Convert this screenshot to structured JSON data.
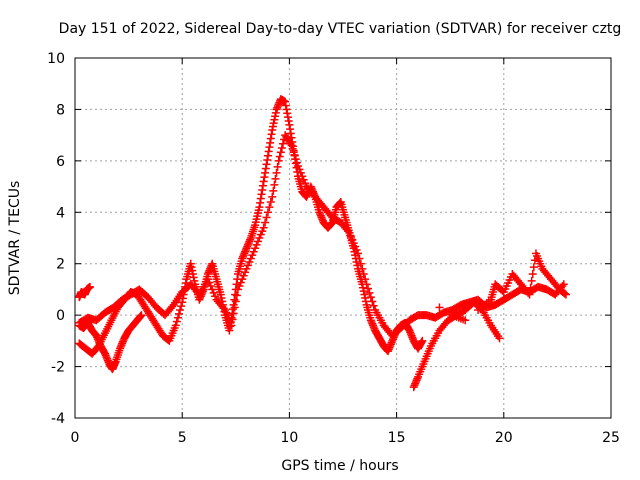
{
  "chart_data": {
    "type": "scatter",
    "title": "Day 151 of 2022, Sidereal Day-to-day VTEC variation (SDTVAR) for receiver cztg",
    "xlabel": "GPS time / hours",
    "ylabel": "SDTVAR / TECUs",
    "xlim": [
      0,
      25
    ],
    "ylim": [
      -4,
      10
    ],
    "xticks": [
      0,
      5,
      10,
      15,
      20,
      25
    ],
    "yticks": [
      -4,
      -2,
      0,
      2,
      4,
      6,
      8,
      10
    ],
    "grid": true,
    "marker": "+",
    "series": [
      {
        "name": "SDTVAR",
        "color": "#ff0000",
        "x": [
          0.2,
          0.3,
          0.45,
          0.55,
          0.7,
          0.2,
          0.4,
          0.6,
          0.8,
          1.0,
          1.2,
          1.4,
          1.6,
          1.75,
          1.9,
          2.1,
          2.3,
          2.5,
          2.7,
          2.9,
          3.1,
          0.2,
          0.5,
          0.8,
          1.1,
          1.4,
          1.7,
          2.0,
          2.3,
          2.6,
          2.9,
          3.2,
          3.5,
          3.8,
          4.1,
          4.4,
          4.7,
          5.0,
          5.2,
          5.4,
          5.6,
          5.8,
          6.0,
          6.2,
          6.4,
          6.6,
          6.8,
          7.0,
          7.2,
          7.4,
          7.6,
          7.8,
          8.0,
          8.2,
          8.4,
          8.6,
          8.8,
          9.0,
          9.2,
          9.4,
          9.6,
          9.8,
          10.0,
          10.2,
          10.4,
          10.6,
          10.8,
          11.0,
          11.2,
          11.4,
          11.6,
          11.8,
          12.0,
          12.2,
          12.4,
          12.6,
          12.8,
          13.0,
          13.2,
          13.4,
          13.6,
          13.8,
          14.0,
          14.2,
          14.4,
          14.6,
          14.8,
          15.0,
          15.2,
          15.4,
          15.6,
          15.8,
          16.0,
          16.2,
          0.2,
          0.6,
          1.0,
          1.4,
          1.8,
          2.2,
          2.6,
          3.0,
          3.4,
          3.8,
          4.2,
          4.6,
          5.0,
          5.4,
          5.8,
          6.2,
          6.6,
          7.0,
          7.3,
          7.6,
          8.0,
          8.4,
          8.8,
          9.2,
          9.5,
          9.8,
          10.1,
          10.4,
          10.8,
          11.2,
          11.6,
          12.0,
          12.4,
          12.8,
          13.2,
          13.6,
          14.0,
          14.4,
          14.8,
          15.2,
          15.6,
          16.0,
          16.4,
          16.8,
          17.2,
          17.6,
          18.0,
          18.4,
          18.8,
          19.2,
          19.6,
          20.0,
          20.4,
          20.8,
          21.2,
          21.6,
          22.0,
          22.4,
          22.8,
          15.8,
          16.0,
          16.3,
          16.6,
          17.0,
          17.4,
          17.8,
          18.2,
          18.6,
          19.0,
          19.4,
          19.8,
          17.0,
          17.6,
          18.2,
          18.8,
          19.4,
          19.6,
          20.0,
          20.4,
          20.8,
          21.2,
          21.5,
          21.8,
          22.2,
          22.6,
          22.9
        ],
        "y": [
          0.7,
          0.9,
          0.8,
          1.0,
          1.1,
          -0.4,
          -0.5,
          -0.3,
          -0.6,
          -0.8,
          -1.2,
          -1.5,
          -1.9,
          -2.1,
          -1.8,
          -1.3,
          -0.9,
          -0.6,
          -0.4,
          -0.2,
          0.0,
          -1.1,
          -1.3,
          -1.5,
          -1.2,
          -0.7,
          -0.2,
          0.3,
          0.6,
          0.9,
          0.8,
          0.4,
          0.0,
          -0.4,
          -0.8,
          -1.0,
          -0.4,
          0.5,
          1.4,
          2.0,
          1.2,
          0.6,
          1.0,
          1.6,
          2.0,
          1.4,
          0.8,
          0.0,
          -0.6,
          0.4,
          1.6,
          2.2,
          2.6,
          3.0,
          3.5,
          4.2,
          5.2,
          6.2,
          7.2,
          8.0,
          8.4,
          8.3,
          7.4,
          6.4,
          5.4,
          4.8,
          4.6,
          5.0,
          4.6,
          4.0,
          3.6,
          3.4,
          3.6,
          4.2,
          4.4,
          3.8,
          3.2,
          2.6,
          1.8,
          1.2,
          0.4,
          -0.2,
          -0.6,
          -0.9,
          -1.2,
          -1.4,
          -1.0,
          -0.6,
          -0.4,
          -0.3,
          -0.6,
          -1.0,
          -1.3,
          -1.0,
          -0.3,
          -0.1,
          -0.2,
          0.1,
          0.3,
          0.6,
          0.8,
          1.0,
          0.7,
          0.3,
          0.0,
          0.4,
          0.9,
          1.2,
          0.8,
          1.4,
          0.6,
          0.2,
          -0.4,
          1.0,
          1.8,
          2.6,
          3.4,
          4.6,
          6.0,
          7.0,
          6.6,
          5.8,
          5.0,
          4.6,
          4.2,
          3.8,
          3.6,
          3.2,
          2.4,
          1.2,
          0.2,
          -0.4,
          -0.8,
          -0.5,
          -0.2,
          0.0,
          0.0,
          -0.1,
          0.1,
          0.2,
          0.4,
          0.5,
          0.6,
          0.3,
          0.4,
          0.6,
          0.8,
          1.0,
          0.9,
          1.1,
          1.0,
          0.8,
          1.2,
          -2.8,
          -2.4,
          -1.8,
          -1.2,
          -0.6,
          -0.2,
          0.0,
          0.2,
          0.5,
          0.2,
          -0.4,
          -0.9,
          0.3,
          0.0,
          -0.2,
          0.2,
          0.6,
          1.2,
          0.9,
          1.6,
          1.2,
          0.8,
          2.4,
          1.8,
          1.4,
          1.0,
          0.8
        ]
      }
    ]
  }
}
